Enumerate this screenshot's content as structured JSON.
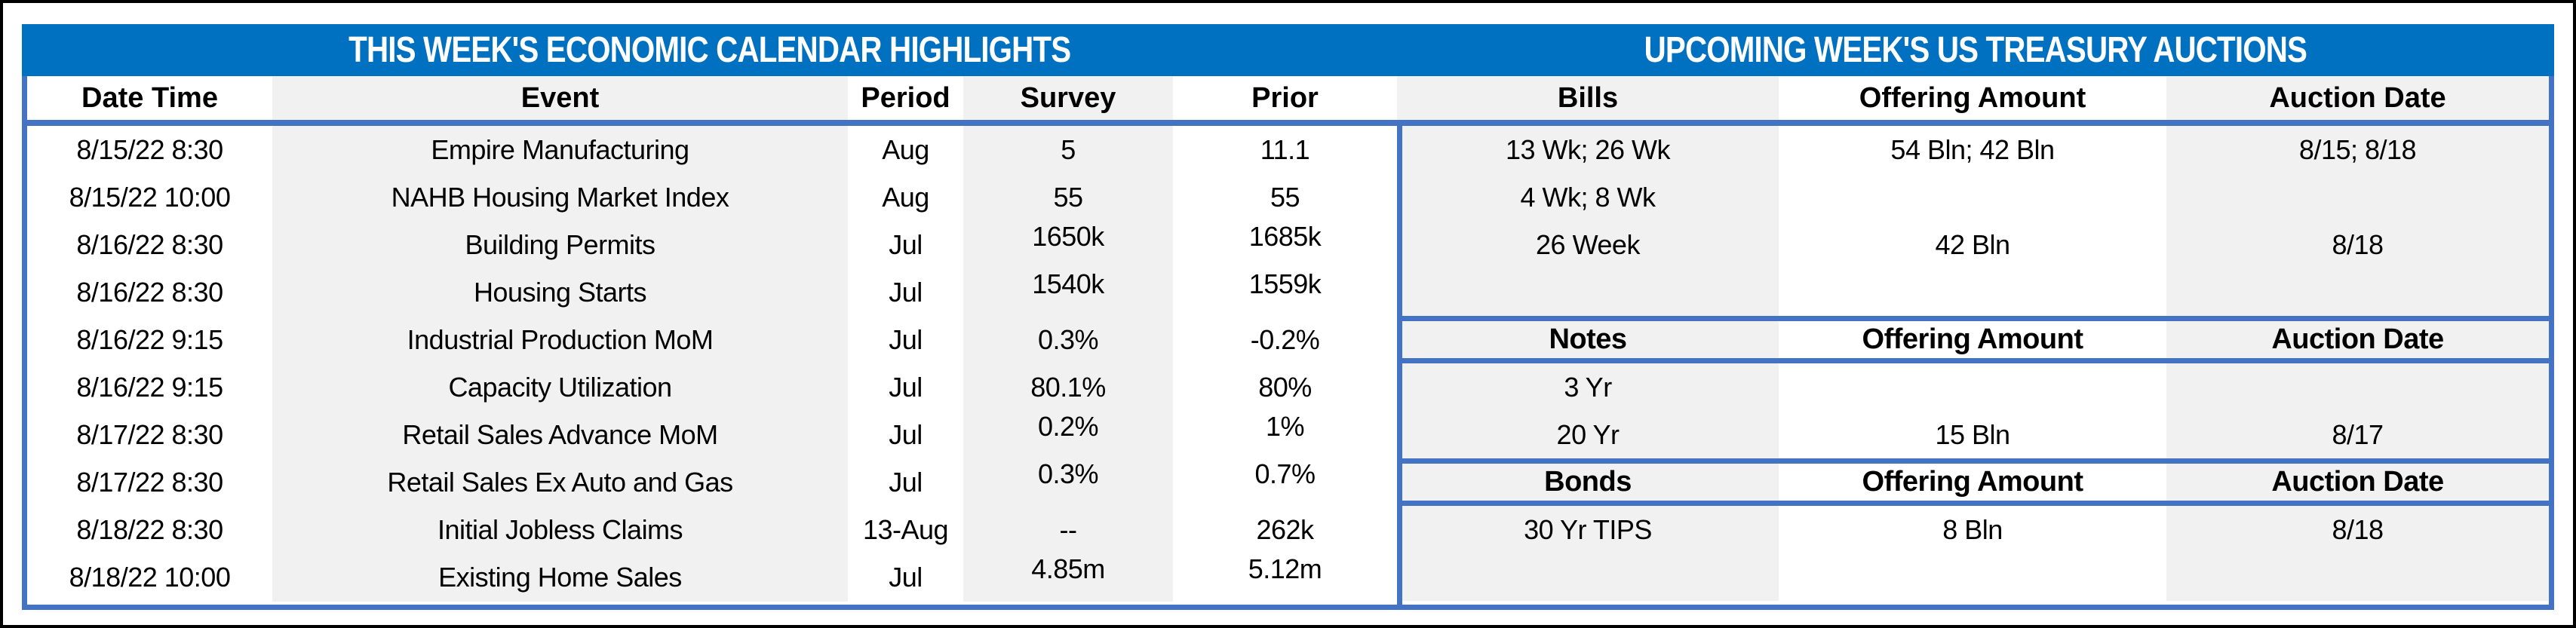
{
  "figure": {
    "left_title": "THIS WEEK'S ECONOMIC CALENDAR HIGHLIGHTS",
    "right_title": "UPCOMING WEEK'S US TREASURY AUCTIONS"
  },
  "header": {
    "date_time": "Date Time",
    "event": "Event",
    "period": "Period",
    "survey": "Survey",
    "prior": "Prior",
    "bills": "Bills",
    "offering": "Offering Amount",
    "auction": "Auction Date"
  },
  "calendar": {
    "rows": [
      {
        "date": "8/15/22 8:30",
        "event": "Empire Manufacturing",
        "period": "Aug",
        "survey": "5",
        "prior": "11.1"
      },
      {
        "date": "8/15/22 10:00",
        "event": "NAHB Housing Market Index",
        "period": "Aug",
        "survey": "55",
        "prior": "55"
      },
      {
        "date": "8/16/22 8:30",
        "event": "Building Permits",
        "period": "Jul",
        "survey": "1650k",
        "prior": "1685k"
      },
      {
        "date": "8/16/22 8:30",
        "event": "Housing Starts",
        "period": "Jul",
        "survey": "1540k",
        "prior": "1559k"
      },
      {
        "date": "8/16/22 9:15",
        "event": "Industrial Production MoM",
        "period": "Jul",
        "survey": "0.3%",
        "prior": "-0.2%"
      },
      {
        "date": "8/16/22 9:15",
        "event": "Capacity Utilization",
        "period": "Jul",
        "survey": "80.1%",
        "prior": "80%"
      },
      {
        "date": "8/17/22 8:30",
        "event": "Retail Sales Advance MoM",
        "period": "Jul",
        "survey": "0.2%",
        "prior": "1%"
      },
      {
        "date": "8/17/22 8:30",
        "event": "Retail Sales Ex Auto and Gas",
        "period": "Jul",
        "survey": "0.3%",
        "prior": "0.7%"
      },
      {
        "date": "8/18/22 8:30",
        "event": "Initial Jobless Claims",
        "period": "13-Aug",
        "survey": "--",
        "prior": "262k"
      },
      {
        "date": "8/18/22 10:00",
        "event": "Existing Home Sales",
        "period": "Jul",
        "survey": "4.85m",
        "prior": "5.12m"
      }
    ]
  },
  "auctions": {
    "bills_rows": [
      {
        "security": "13 Wk; 26 Wk",
        "offering": "54 Bln; 42 Bln",
        "auction": "8/15; 8/18"
      },
      {
        "security": "4 Wk; 8 Wk",
        "offering": "",
        "auction": ""
      },
      {
        "security": "26 Week",
        "offering": "42 Bln",
        "auction": "8/18"
      },
      {
        "security": "",
        "offering": "",
        "auction": ""
      }
    ],
    "notes_header": {
      "security": "Notes",
      "offering": "Offering Amount",
      "auction": "Auction Date"
    },
    "notes_rows": [
      {
        "security": "3 Yr",
        "offering": "",
        "auction": ""
      },
      {
        "security": "20 Yr",
        "offering": "15 Bln",
        "auction": "8/17"
      }
    ],
    "bonds_header": {
      "security": "Bonds",
      "offering": "Offering Amount",
      "auction": "Auction Date"
    },
    "bonds_rows": [
      {
        "security": "30 Yr TIPS",
        "offering": "8 Bln",
        "auction": "8/18"
      },
      {
        "security": "",
        "offering": "",
        "auction": ""
      }
    ]
  },
  "colors": {
    "title_band_blue": "#0070C0",
    "grid_line_blue": "#4472C4",
    "stripe_gray": "#F1F1F1",
    "text": "#000000"
  }
}
